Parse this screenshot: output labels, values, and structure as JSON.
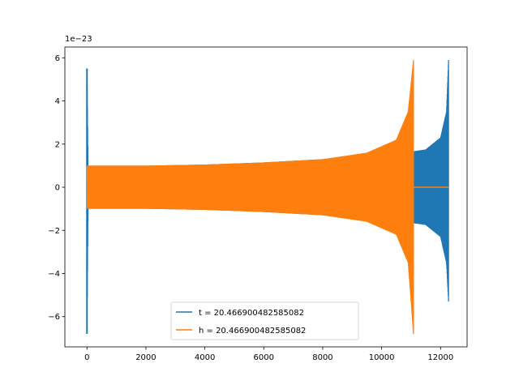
{
  "chart_data": {
    "type": "line",
    "title": "",
    "xlabel": "",
    "ylabel": "",
    "y_offset_label": "1e−23",
    "xlim": [
      -750,
      12900
    ],
    "ylim": [
      -7.4,
      6.5
    ],
    "y_scale_note": "values in units of 1e-23",
    "xticks": [
      {
        "value": 0,
        "label": "0"
      },
      {
        "value": 2000,
        "label": "2000"
      },
      {
        "value": 4000,
        "label": "4000"
      },
      {
        "value": 6000,
        "label": "6000"
      },
      {
        "value": 8000,
        "label": "8000"
      },
      {
        "value": 10000,
        "label": "10000"
      },
      {
        "value": 12000,
        "label": "12000"
      }
    ],
    "yticks": [
      {
        "value": -6,
        "label": "−6"
      },
      {
        "value": -4,
        "label": "−4"
      },
      {
        "value": -2,
        "label": "−2"
      },
      {
        "value": 0,
        "label": "0"
      },
      {
        "value": 2,
        "label": "2"
      },
      {
        "value": 4,
        "label": "4"
      },
      {
        "value": 6,
        "label": "6"
      }
    ],
    "grid": false,
    "legend_position": "lower center",
    "series": [
      {
        "name": "t = 20.466900482585082",
        "color": "#1f77b4",
        "envelope": [
          {
            "x": 0,
            "upper": 5.5,
            "lower": -6.8
          },
          {
            "x": 40,
            "upper": 1.0,
            "lower": -1.0
          },
          {
            "x": 2000,
            "upper": 1.0,
            "lower": -1.0
          },
          {
            "x": 4000,
            "upper": 1.05,
            "lower": -1.05
          },
          {
            "x": 6000,
            "upper": 1.15,
            "lower": -1.15
          },
          {
            "x": 8000,
            "upper": 1.3,
            "lower": -1.3
          },
          {
            "x": 10000,
            "upper": 1.55,
            "lower": -1.55
          },
          {
            "x": 11000,
            "upper": 1.65,
            "lower": -1.65
          },
          {
            "x": 11500,
            "upper": 1.75,
            "lower": -1.75
          },
          {
            "x": 12000,
            "upper": 2.3,
            "lower": -2.3
          },
          {
            "x": 12200,
            "upper": 3.5,
            "lower": -3.5
          },
          {
            "x": 12270,
            "upper": 5.9,
            "lower": -5.3
          }
        ],
        "oscillation_period": 95
      },
      {
        "name": "h = 20.466900482585082",
        "color": "#ff7f0e",
        "envelope": [
          {
            "x": 0,
            "upper": 1.0,
            "lower": -1.0
          },
          {
            "x": 2000,
            "upper": 1.0,
            "lower": -1.0
          },
          {
            "x": 4000,
            "upper": 1.05,
            "lower": -1.05
          },
          {
            "x": 6000,
            "upper": 1.15,
            "lower": -1.15
          },
          {
            "x": 8000,
            "upper": 1.3,
            "lower": -1.3
          },
          {
            "x": 9500,
            "upper": 1.6,
            "lower": -1.6
          },
          {
            "x": 10500,
            "upper": 2.2,
            "lower": -2.2
          },
          {
            "x": 10900,
            "upper": 3.5,
            "lower": -3.5
          },
          {
            "x": 11080,
            "upper": 5.9,
            "lower": -6.8
          }
        ],
        "oscillation_period": 95,
        "flat_after": {
          "from": 11100,
          "to": 12270,
          "value": 0
        }
      }
    ]
  }
}
